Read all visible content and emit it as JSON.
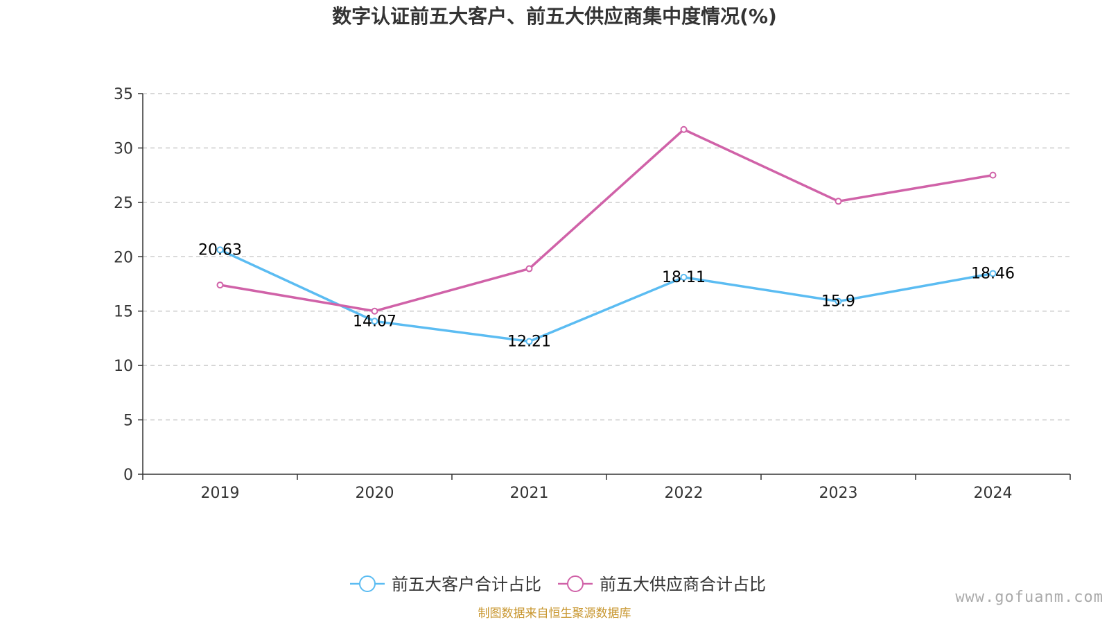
{
  "chart_data": {
    "type": "line",
    "title": "数字认证前五大客户、前五大供应商集中度情况(%)",
    "categories": [
      "2019",
      "2020",
      "2021",
      "2022",
      "2023",
      "2024"
    ],
    "ylim": [
      0,
      35
    ],
    "yticks": [
      0,
      5,
      10,
      15,
      20,
      25,
      30,
      35
    ],
    "grid": true,
    "legend_position": "bottom-center",
    "series": [
      {
        "name": "前五大客户合计占比",
        "color": "#5bbcf2",
        "values": [
          20.63,
          14.07,
          12.21,
          18.11,
          15.9,
          18.46
        ],
        "labels": [
          "20.63",
          "14.07",
          "12.21",
          "18.11",
          "15.9",
          "18.46"
        ]
      },
      {
        "name": "前五大供应商合计占比",
        "color": "#d062a8",
        "values": [
          17.4,
          15.0,
          18.9,
          31.7,
          25.1,
          27.5
        ]
      }
    ]
  },
  "footer": {
    "source": "制图数据来自恒生聚源数据库",
    "watermark": "www.gofuanm.com"
  }
}
